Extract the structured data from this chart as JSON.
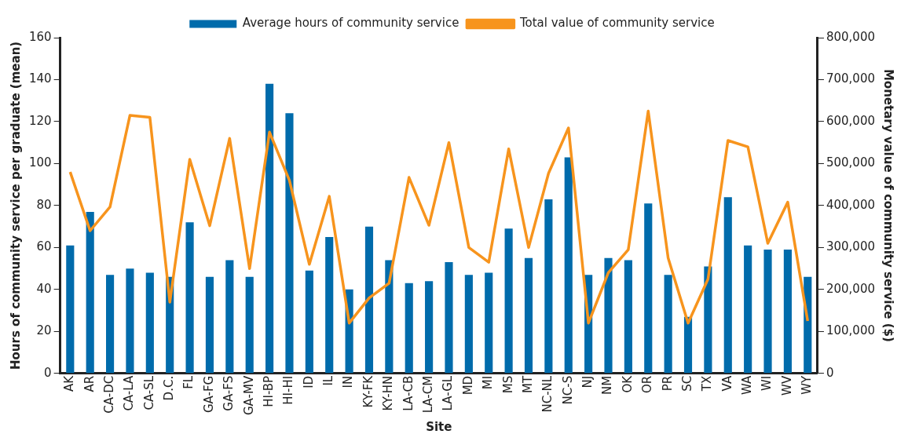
{
  "chart_data": {
    "type": "bar",
    "xlabel": "Site",
    "ylabel": "Hours of community service per graduate (mean)",
    "y2label": "Monetary value of community service ($)",
    "categories": [
      "AK",
      "AR",
      "CA-DC",
      "CA-LA",
      "CA-SL",
      "D.C.",
      "FL",
      "GA-FG",
      "GA-FS",
      "GA-MV",
      "HI-BP",
      "HI-HI",
      "ID",
      "IL",
      "IN",
      "KY-FK",
      "KY-HN",
      "LA-CB",
      "LA-CM",
      "LA-GL",
      "MD",
      "MI",
      "MS",
      "MT",
      "NC-NL",
      "NC-S",
      "NJ",
      "NM",
      "OK",
      "OR",
      "PR",
      "SC",
      "TX",
      "VA",
      "WA",
      "WI",
      "WV",
      "WY"
    ],
    "series": [
      {
        "name": "Average hours of community service",
        "color": "#006bab",
        "values": [
          61,
          77,
          47,
          50,
          48,
          46,
          72,
          46,
          54,
          46,
          138,
          124,
          49,
          65,
          40,
          70,
          54,
          43,
          44,
          53,
          47,
          48,
          69,
          55,
          83,
          103,
          47,
          55,
          54,
          81,
          47,
          27,
          51,
          84,
          61,
          59,
          59,
          46
        ]
      },
      {
        "name": "Total value of community service",
        "type": "line",
        "axis": "y2",
        "color": "#f7941d",
        "values": [
          480000,
          340000,
          397000,
          615000,
          610000,
          170000,
          510000,
          352000,
          560000,
          250000,
          575000,
          460000,
          260000,
          422000,
          120000,
          180000,
          215000,
          467000,
          353000,
          550000,
          300000,
          265000,
          535000,
          300000,
          477000,
          585000,
          120000,
          240000,
          295000,
          625000,
          275000,
          120000,
          225000,
          555000,
          540000,
          310000,
          408000,
          125000
        ]
      }
    ],
    "ylim": [
      0,
      160
    ],
    "yticks": [
      0,
      20,
      40,
      60,
      80,
      100,
      120,
      140,
      160
    ],
    "y2lim": [
      0,
      800000
    ],
    "y2ticks": [
      0,
      {
        "value": 100000,
        "label": "100,000"
      },
      {
        "value": 200000,
        "label": "200,000"
      },
      {
        "value": 300000,
        "label": "300,000"
      },
      {
        "value": 400000,
        "label": "400,000"
      },
      {
        "value": 500000,
        "label": "500,000"
      },
      {
        "value": 600000,
        "label": "600,000"
      },
      {
        "value": 700000,
        "label": "700,000"
      },
      {
        "value": 800000,
        "label": "800,000"
      }
    ],
    "legend": "top",
    "grid": false,
    "marker": "none"
  }
}
